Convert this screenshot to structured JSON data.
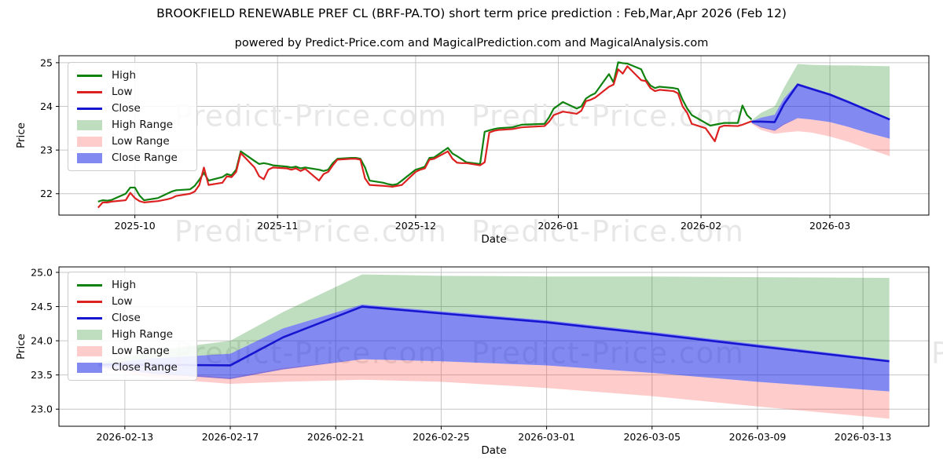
{
  "title": "BROOKFIELD RENEWABLE PREF CL (BRF-PA.TO) short term price prediction : Feb,Mar,Apr 2026 (Feb 12)",
  "subtitle": "powered by Predict-Price.com and MagicalPrediction.com and MagicalAnalysis.com",
  "watermark": "Predict-Price.com",
  "colors": {
    "high": "#0f820f",
    "low": "#dc2121",
    "close": "#1616d1",
    "high_range_fill": "rgba(18,128,18,0.27)",
    "low_range_fill": "rgba(255,40,40,0.24)",
    "close_range_fill": "rgba(28,40,228,0.55)",
    "grid": "#c6c6c6",
    "spine": "#000000",
    "tick_text": "#000000",
    "watermark": "#e7e7e7"
  },
  "legend_items": [
    {
      "label": "High",
      "swatch": "line",
      "color_key": "high"
    },
    {
      "label": "Low",
      "swatch": "line",
      "color_key": "low"
    },
    {
      "label": "Close",
      "swatch": "line",
      "color_key": "close"
    },
    {
      "label": "High Range",
      "swatch": "patch",
      "color_key": "high_range_fill"
    },
    {
      "label": "Low Range",
      "swatch": "patch",
      "color_key": "low_range_fill"
    },
    {
      "label": "Close Range",
      "swatch": "patch",
      "color_key": "close_range_fill"
    }
  ],
  "chart_data": [
    {
      "type": "line",
      "name": "price-history-with-forecast",
      "xlabel": "Date",
      "ylabel": "Price",
      "x_range": [
        "2025-09-14T12:00:00Z",
        "2026-03-22T12:00:00Z"
      ],
      "y_range": [
        21.51,
        25.16
      ],
      "x_tick_dates": [
        "2025-10-01",
        "2025-11-01",
        "2025-12-01",
        "2026-01-01",
        "2026-02-01",
        "2026-03-01"
      ],
      "x_tick_labels": [
        "2025-10",
        "2025-11",
        "2025-12",
        "2026-01",
        "2026-02",
        "2026-03"
      ],
      "y_ticks": [
        22,
        23,
        24,
        25
      ],
      "y_tick_labels": [
        "22",
        "23",
        "24",
        "25"
      ],
      "history": {
        "dates": [
          "2025-09-23",
          "2025-09-24",
          "2025-09-25",
          "2025-09-26",
          "2025-09-29",
          "2025-09-30",
          "2025-10-01",
          "2025-10-02",
          "2025-10-03",
          "2025-10-06",
          "2025-10-07",
          "2025-10-08",
          "2025-10-09",
          "2025-10-10",
          "2025-10-13",
          "2025-10-14",
          "2025-10-15",
          "2025-10-16",
          "2025-10-17",
          "2025-10-20",
          "2025-10-21",
          "2025-10-22",
          "2025-10-23",
          "2025-10-24",
          "2025-10-27",
          "2025-10-28",
          "2025-10-29",
          "2025-10-30",
          "2025-10-31",
          "2025-11-03",
          "2025-11-04",
          "2025-11-05",
          "2025-11-06",
          "2025-11-07",
          "2025-11-10",
          "2025-11-11",
          "2025-11-12",
          "2025-11-13",
          "2025-11-14",
          "2025-11-17",
          "2025-11-18",
          "2025-11-19",
          "2025-11-20",
          "2025-11-21",
          "2025-11-24",
          "2025-11-25",
          "2025-11-26",
          "2025-11-27",
          "2025-11-28",
          "2025-12-01",
          "2025-12-02",
          "2025-12-03",
          "2025-12-04",
          "2025-12-05",
          "2025-12-08",
          "2025-12-09",
          "2025-12-10",
          "2025-12-11",
          "2025-12-12",
          "2025-12-15",
          "2025-12-16",
          "2025-12-17",
          "2025-12-18",
          "2025-12-19",
          "2025-12-22",
          "2025-12-23",
          "2025-12-24",
          "2025-12-29",
          "2025-12-30",
          "2025-12-31",
          "2026-01-02",
          "2026-01-05",
          "2026-01-06",
          "2026-01-07",
          "2026-01-08",
          "2026-01-09",
          "2026-01-12",
          "2026-01-13",
          "2026-01-14",
          "2026-01-15",
          "2026-01-16",
          "2026-01-19",
          "2026-01-20",
          "2026-01-21",
          "2026-01-22",
          "2026-01-23",
          "2026-01-26",
          "2026-01-27",
          "2026-01-28",
          "2026-01-29",
          "2026-01-30",
          "2026-02-02",
          "2026-02-03",
          "2026-02-04",
          "2026-02-05",
          "2026-02-06",
          "2026-02-09",
          "2026-02-10",
          "2026-02-11",
          "2026-02-12"
        ],
        "high": [
          21.82,
          21.85,
          21.84,
          21.86,
          22.0,
          22.14,
          22.14,
          21.96,
          21.85,
          21.9,
          21.95,
          22.0,
          22.05,
          22.08,
          22.1,
          22.18,
          22.32,
          22.48,
          22.3,
          22.38,
          22.45,
          22.42,
          22.55,
          22.97,
          22.75,
          22.68,
          22.7,
          22.68,
          22.65,
          22.62,
          22.6,
          22.62,
          22.58,
          22.6,
          22.55,
          22.52,
          22.55,
          22.7,
          22.8,
          22.82,
          22.82,
          22.8,
          22.6,
          22.3,
          22.25,
          22.22,
          22.2,
          22.22,
          22.3,
          22.55,
          22.58,
          22.62,
          22.82,
          22.83,
          23.05,
          22.92,
          22.86,
          22.79,
          22.72,
          22.68,
          23.42,
          23.45,
          23.48,
          23.5,
          23.52,
          23.55,
          23.58,
          23.6,
          23.75,
          23.95,
          24.1,
          23.95,
          24.0,
          24.18,
          24.25,
          24.3,
          24.74,
          24.55,
          25.01,
          24.99,
          24.98,
          24.85,
          24.62,
          24.48,
          24.42,
          24.45,
          24.42,
          24.4,
          24.15,
          23.95,
          23.8,
          23.62,
          23.56,
          23.58,
          23.6,
          23.62,
          23.62,
          24.02,
          23.8,
          23.7
        ],
        "low": [
          21.68,
          21.8,
          21.8,
          21.82,
          21.85,
          22.02,
          21.9,
          21.83,
          21.8,
          21.83,
          21.85,
          21.87,
          21.9,
          21.95,
          22.0,
          22.05,
          22.2,
          22.6,
          22.2,
          22.25,
          22.4,
          22.38,
          22.5,
          22.93,
          22.6,
          22.4,
          22.33,
          22.55,
          22.6,
          22.58,
          22.55,
          22.58,
          22.52,
          22.57,
          22.3,
          22.45,
          22.5,
          22.65,
          22.78,
          22.8,
          22.8,
          22.78,
          22.35,
          22.2,
          22.18,
          22.17,
          22.16,
          22.18,
          22.2,
          22.5,
          22.55,
          22.58,
          22.78,
          22.8,
          22.97,
          22.8,
          22.71,
          22.7,
          22.7,
          22.65,
          22.72,
          23.4,
          23.44,
          23.46,
          23.48,
          23.5,
          23.52,
          23.55,
          23.65,
          23.8,
          23.88,
          23.83,
          23.9,
          24.12,
          24.15,
          24.2,
          24.45,
          24.5,
          24.85,
          24.75,
          24.92,
          24.6,
          24.58,
          24.42,
          24.35,
          24.38,
          24.35,
          24.3,
          24.0,
          23.85,
          23.6,
          23.5,
          23.35,
          23.2,
          23.52,
          23.56,
          23.55,
          23.58,
          23.62,
          23.66
        ]
      },
      "forecast": {
        "dates": [
          "2026-02-12",
          "2026-02-14",
          "2026-02-17",
          "2026-02-19",
          "2026-02-22",
          "2026-02-25",
          "2026-03-01",
          "2026-03-05",
          "2026-03-09",
          "2026-03-14"
        ],
        "close": [
          23.65,
          23.65,
          23.64,
          24.05,
          24.5,
          24.4,
          24.27,
          24.1,
          23.92,
          23.7
        ],
        "high_range": {
          "upper": [
            23.68,
            23.85,
            24.0,
            24.42,
            24.97,
            24.95,
            24.94,
            24.94,
            24.93,
            24.92
          ],
          "lower": [
            23.66,
            23.74,
            23.81,
            24.18,
            24.53,
            24.43,
            24.3,
            24.13,
            23.95,
            23.72
          ]
        },
        "low_range": {
          "upper": [
            23.63,
            23.54,
            23.46,
            23.6,
            23.73,
            23.7,
            23.64,
            23.53,
            23.4,
            23.26
          ],
          "lower": [
            23.6,
            23.46,
            23.37,
            23.4,
            23.43,
            23.4,
            23.31,
            23.19,
            23.04,
            22.86
          ]
        },
        "close_range": {
          "upper": [
            23.66,
            23.74,
            23.81,
            24.18,
            24.53,
            24.43,
            24.3,
            24.13,
            23.95,
            23.72
          ],
          "lower": [
            23.62,
            23.52,
            23.44,
            23.58,
            23.73,
            23.7,
            23.64,
            23.53,
            23.4,
            23.26
          ]
        }
      }
    },
    {
      "type": "line",
      "name": "forecast-detail",
      "xlabel": "Date",
      "ylabel": "Price",
      "x_range": [
        "2026-02-10T12:00:00Z",
        "2026-03-15T12:00:00Z"
      ],
      "y_range": [
        22.75,
        25.08
      ],
      "x_tick_dates": [
        "2026-02-13",
        "2026-02-17",
        "2026-02-21",
        "2026-02-25",
        "2026-03-01",
        "2026-03-05",
        "2026-03-09",
        "2026-03-13"
      ],
      "x_tick_labels": [
        "2026-02-13",
        "2026-02-17",
        "2026-02-21",
        "2026-02-25",
        "2026-03-01",
        "2026-03-05",
        "2026-03-09",
        "2026-03-13"
      ],
      "y_ticks": [
        23.0,
        23.5,
        24.0,
        24.5,
        25.0
      ],
      "y_tick_labels": [
        "23.0",
        "23.5",
        "24.0",
        "24.5",
        "25.0"
      ],
      "forecast": {
        "dates": [
          "2026-02-12",
          "2026-02-14",
          "2026-02-17",
          "2026-02-19",
          "2026-02-22",
          "2026-02-25",
          "2026-03-01",
          "2026-03-05",
          "2026-03-09",
          "2026-03-14"
        ],
        "close": [
          23.65,
          23.65,
          23.64,
          24.05,
          24.5,
          24.4,
          24.27,
          24.1,
          23.92,
          23.7
        ],
        "high_range": {
          "upper": [
            23.68,
            23.85,
            24.0,
            24.42,
            24.97,
            24.95,
            24.94,
            24.94,
            24.93,
            24.92
          ],
          "lower": [
            23.66,
            23.74,
            23.81,
            24.18,
            24.53,
            24.43,
            24.3,
            24.13,
            23.95,
            23.72
          ]
        },
        "low_range": {
          "upper": [
            23.63,
            23.54,
            23.46,
            23.6,
            23.73,
            23.7,
            23.64,
            23.53,
            23.4,
            23.26
          ],
          "lower": [
            23.6,
            23.46,
            23.37,
            23.4,
            23.43,
            23.4,
            23.31,
            23.19,
            23.04,
            22.86
          ]
        },
        "close_range": {
          "upper": [
            23.66,
            23.74,
            23.81,
            24.18,
            24.53,
            24.43,
            24.3,
            24.13,
            23.95,
            23.72
          ],
          "lower": [
            23.62,
            23.52,
            23.44,
            23.58,
            23.73,
            23.7,
            23.64,
            23.53,
            23.4,
            23.26
          ]
        }
      }
    }
  ]
}
